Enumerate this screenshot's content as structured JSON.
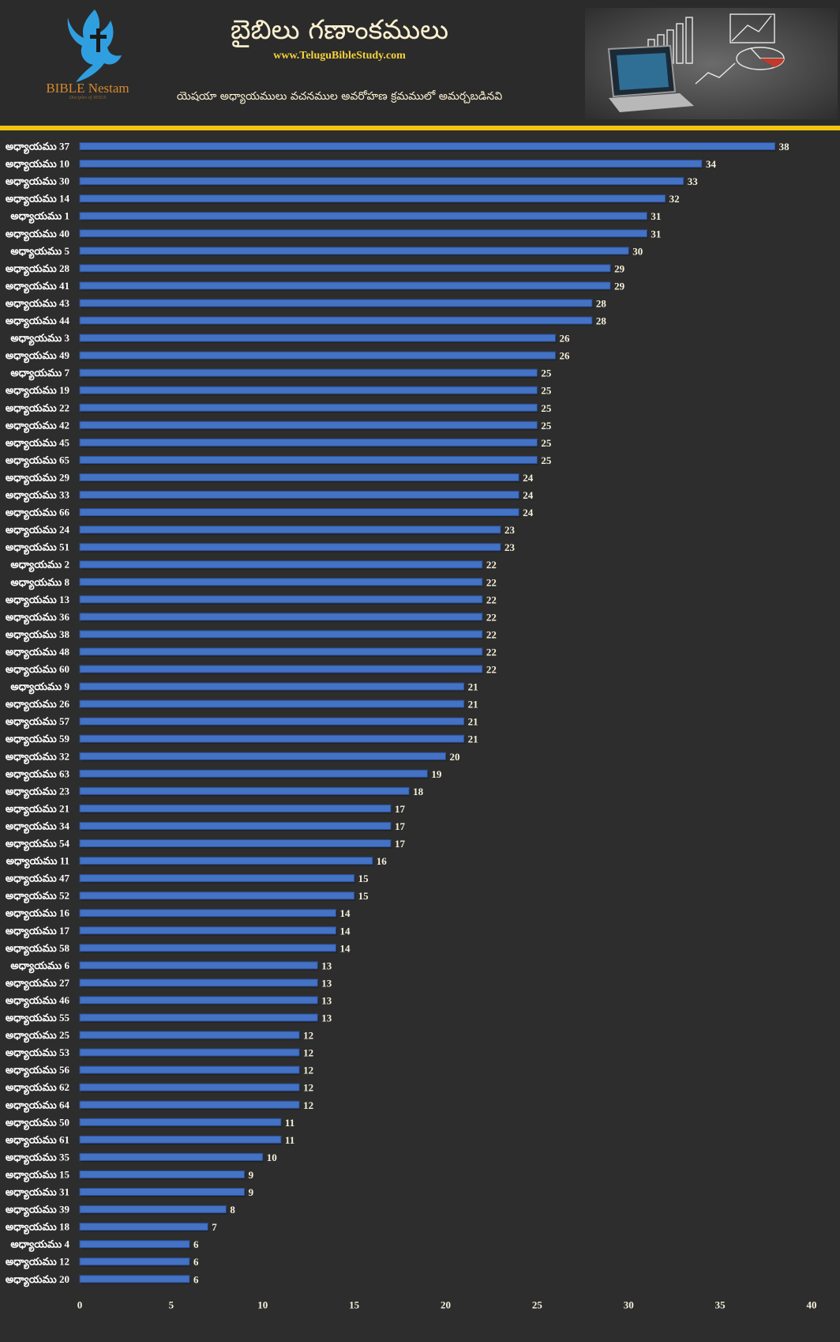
{
  "header": {
    "logo_text": "BIBLE Nestam",
    "logo_tagline": "Disciples of JESUS",
    "title": "బైబిలు గణాంకములు",
    "website": "www.TeluguBibleStudy.com",
    "subtitle": "యెషయా అధ్యాయములు వచనముల అవరోహణ క్రమములో అమర్చబడినవి",
    "colors": {
      "logo": "#2f9fe0",
      "logo_text": "#d4882c",
      "website": "#f5d23c",
      "rule": "#f2c511"
    }
  },
  "chart_data": {
    "type": "bar",
    "orientation": "horizontal",
    "title": "",
    "xlabel": "",
    "ylabel": "",
    "xlim": [
      0,
      40
    ],
    "x_ticks": [
      0,
      5,
      10,
      15,
      20,
      25,
      30,
      35,
      40
    ],
    "grid": false,
    "legend": "none",
    "bar_color": "#4472c4",
    "categories": [
      "అధ్యాయము 37",
      "అధ్యాయము 10",
      "అధ్యాయము 30",
      "అధ్యాయము 14",
      "అధ్యాయము 1",
      "అధ్యాయము 40",
      "అధ్యాయము 5",
      "అధ్యాయము 28",
      "అధ్యాయము 41",
      "అధ్యాయము 43",
      "అధ్యాయము 44",
      "అధ్యాయము 3",
      "అధ్యాయము 49",
      "అధ్యాయము 7",
      "అధ్యాయము 19",
      "అధ్యాయము 22",
      "అధ్యాయము 42",
      "అధ్యాయము 45",
      "అధ్యాయము 65",
      "అధ్యాయము 29",
      "అధ్యాయము 33",
      "అధ్యాయము 66",
      "అధ్యాయము 24",
      "అధ్యాయము 51",
      "అధ్యాయము 2",
      "అధ్యాయము 8",
      "అధ్యాయము 13",
      "అధ్యాయము 36",
      "అధ్యాయము 38",
      "అధ్యాయము 48",
      "అధ్యాయము 60",
      "అధ్యాయము 9",
      "అధ్యాయము 26",
      "అధ్యాయము 57",
      "అధ్యాయము 59",
      "అధ్యాయము 32",
      "అధ్యాయము 63",
      "అధ్యాయము 23",
      "అధ్యాయము 21",
      "అధ్యాయము 34",
      "అధ్యాయము 54",
      "అధ్యాయము 11",
      "అధ్యాయము 47",
      "అధ్యాయము 52",
      "అధ్యాయము 16",
      "అధ్యాయము 17",
      "అధ్యాయము 58",
      "అధ్యాయము 6",
      "అధ్యాయము 27",
      "అధ్యాయము 46",
      "అధ్యాయము 55",
      "అధ్యాయము 25",
      "అధ్యాయము 53",
      "అధ్యాయము 56",
      "అధ్యాయము 62",
      "అధ్యాయము 64",
      "అధ్యాయము 50",
      "అధ్యాయము 61",
      "అధ్యాయము 35",
      "అధ్యాయము 15",
      "అధ్యాయము 31",
      "అధ్యాయము 39",
      "అధ్యాయము 18",
      "అధ్యాయము 4",
      "అధ్యాయము 12",
      "అధ్యాయము 20"
    ],
    "values": [
      38,
      34,
      33,
      32,
      31,
      31,
      30,
      29,
      29,
      28,
      28,
      26,
      26,
      25,
      25,
      25,
      25,
      25,
      25,
      24,
      24,
      24,
      23,
      23,
      22,
      22,
      22,
      22,
      22,
      22,
      22,
      21,
      21,
      21,
      21,
      20,
      19,
      18,
      17,
      17,
      17,
      16,
      15,
      15,
      14,
      14,
      14,
      13,
      13,
      13,
      13,
      12,
      12,
      12,
      12,
      12,
      11,
      11,
      10,
      9,
      9,
      8,
      7,
      6,
      6,
      6
    ]
  }
}
